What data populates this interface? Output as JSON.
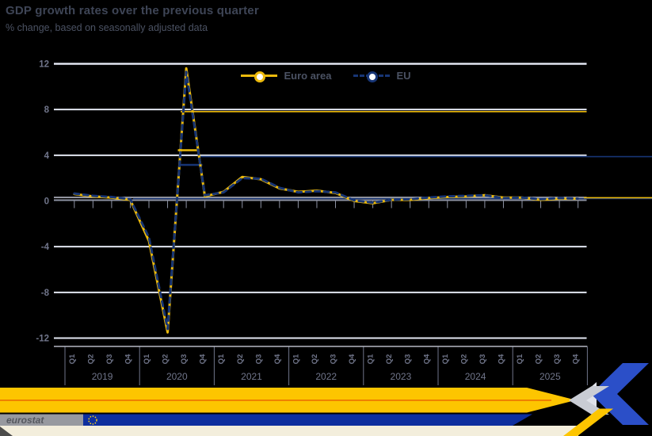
{
  "header": {
    "title": "GDP growth rates over the previous quarter",
    "subtitle": "% change, based on seasonally adjusted data"
  },
  "branding": {
    "logo_text": "eurostat"
  },
  "theme": {
    "background": "#000000",
    "euro_area_yellow": "#ecba0c",
    "eu_navy": "#173575",
    "stripe_yellow": "#fdc500",
    "stripe_orange": "#ef7d00",
    "stripe_navy": "#0e2f9e",
    "arrow_blue": "#2b4fc8",
    "arrow_silver": "#c9ccd4",
    "cream": "#f3eedc",
    "gridline": "#e2e6f1",
    "axis_gray": "#8e93a4",
    "label_gray": "#70758a",
    "stars_yellow": "#ffd617"
  },
  "chart_data": {
    "type": "line",
    "title": "GDP growth rates over the previous quarter",
    "subtitle": "% change, based on seasonally adjusted data",
    "years": [
      "2019",
      "2020",
      "2021",
      "2022",
      "2023",
      "2024",
      "2025"
    ],
    "quarters_per_year": [
      "Q1",
      "Q2",
      "Q3",
      "Q4"
    ],
    "yticks": [
      12,
      8,
      4,
      0,
      -4,
      -8,
      -12
    ],
    "ylim": [
      -12,
      12
    ],
    "grid": true,
    "legend_position": "top-center",
    "series": [
      {
        "name": "Euro area",
        "color": "#ecba0c",
        "line_style": "solid",
        "values": [
          0.6,
          0.4,
          0.3,
          0.1,
          -3.5,
          -11.5,
          11.6,
          0.4,
          0.8,
          2.1,
          1.9,
          1.1,
          0.8,
          0.9,
          0.7,
          0.0,
          -0.2,
          0.1,
          0.1,
          0.25,
          0.35,
          0.4,
          0.5,
          0.3,
          0.3,
          0.1,
          0.2,
          0.2
        ]
      },
      {
        "name": "EU",
        "color": "#173575",
        "line_style": "dashed",
        "values": [
          0.65,
          0.45,
          0.35,
          0.15,
          -3.2,
          -11.2,
          11.3,
          0.5,
          0.75,
          2.0,
          1.95,
          1.15,
          0.75,
          0.85,
          0.75,
          0.05,
          -0.15,
          0.1,
          0.15,
          0.3,
          0.4,
          0.45,
          0.5,
          0.25,
          0.3,
          0.15,
          0.25,
          0.2
        ]
      }
    ]
  }
}
